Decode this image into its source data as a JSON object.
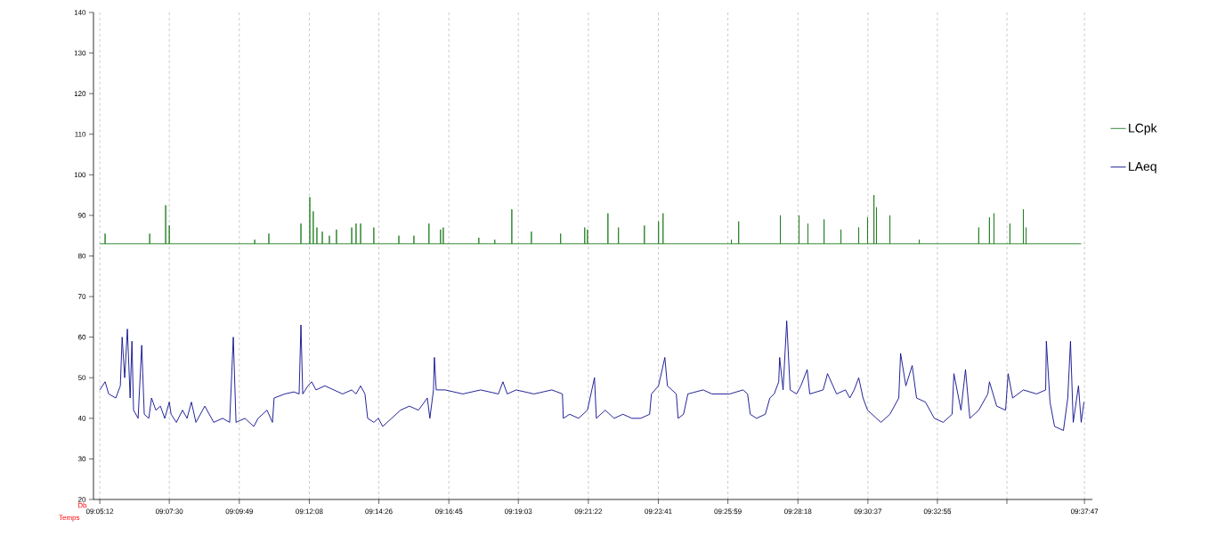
{
  "chart_data": {
    "type": "line",
    "xlabel": "Temps",
    "ylabel": "Db",
    "xlim": [
      9.0832,
      9.6341
    ],
    "ylim": [
      20,
      140
    ],
    "yticks": [
      20,
      30,
      40,
      50,
      60,
      70,
      80,
      90,
      100,
      110,
      120,
      130,
      140
    ],
    "xticks": [
      {
        "value": 9.08667,
        "label": "09:05:12"
      },
      {
        "value": 9.125,
        "label": "09:07:30"
      },
      {
        "value": 9.16361,
        "label": "09:09:49"
      },
      {
        "value": 9.20222,
        "label": "09:12:08"
      },
      {
        "value": 9.24056,
        "label": "09:14:26"
      },
      {
        "value": 9.27917,
        "label": "09:16:45"
      },
      {
        "value": 9.3175,
        "label": "09:19:03"
      },
      {
        "value": 9.35611,
        "label": "09:21:22"
      },
      {
        "value": 9.39472,
        "label": "09:23:41"
      },
      {
        "value": 9.43306,
        "label": "09:25:59"
      },
      {
        "value": 9.47167,
        "label": "09:28:18"
      },
      {
        "value": 9.51028,
        "label": "09:30:37"
      },
      {
        "value": 9.54861,
        "label": "09:32:55"
      },
      {
        "value": 9.58694,
        "label": null
      },
      {
        "value": 9.62972,
        "label": "09:37:47"
      }
    ],
    "grid": "x",
    "legend": "right",
    "marker": "none",
    "line_style": "solid",
    "series": [
      {
        "name": "LCpk",
        "color": "#1e7d1e",
        "x": [
          9.0867,
          9.0896,
          9.0896,
          9.0896,
          9.1142,
          9.1142,
          9.1142,
          9.123,
          9.123,
          9.123,
          9.125,
          9.125,
          9.125,
          9.1721,
          9.1721,
          9.1721,
          9.1799,
          9.1799,
          9.1799,
          9.1976,
          9.1976,
          9.1976,
          9.2025,
          9.2025,
          9.2025,
          9.2044,
          9.2044,
          9.2044,
          9.2064,
          9.2064,
          9.2064,
          9.2094,
          9.2094,
          9.2094,
          9.2133,
          9.2133,
          9.2133,
          9.2172,
          9.2172,
          9.2172,
          9.2256,
          9.2256,
          9.2256,
          9.228,
          9.228,
          9.228,
          9.2305,
          9.2305,
          9.2305,
          9.2378,
          9.2378,
          9.2378,
          9.2516,
          9.2516,
          9.2516,
          9.2599,
          9.2599,
          9.2599,
          9.2682,
          9.2682,
          9.2682,
          9.2746,
          9.2746,
          9.2746,
          9.2761,
          9.2761,
          9.2761,
          9.2957,
          9.2957,
          9.2957,
          9.3045,
          9.3045,
          9.3045,
          9.3139,
          9.3139,
          9.3139,
          9.3247,
          9.3247,
          9.3247,
          9.3408,
          9.3408,
          9.3408,
          9.3541,
          9.3541,
          9.3541,
          9.3556,
          9.3556,
          9.3556,
          9.3669,
          9.3669,
          9.3669,
          9.3727,
          9.3727,
          9.3727,
          9.387,
          9.387,
          9.387,
          9.3948,
          9.3948,
          9.3948,
          9.3973,
          9.3973,
          9.3973,
          9.435,
          9.435,
          9.435,
          9.439,
          9.439,
          9.439,
          9.462,
          9.462,
          9.462,
          9.4723,
          9.4723,
          9.4723,
          9.4772,
          9.4772,
          9.4772,
          9.4861,
          9.4861,
          9.4861,
          9.4954,
          9.4954,
          9.4954,
          9.5052,
          9.5052,
          9.5052,
          9.5101,
          9.5101,
          9.5101,
          9.5136,
          9.5136,
          9.5136,
          9.515,
          9.515,
          9.515,
          9.5224,
          9.5224,
          9.5224,
          9.5386,
          9.5386,
          9.5386,
          9.5714,
          9.5714,
          9.5714,
          9.5773,
          9.5773,
          9.5773,
          9.5798,
          9.5798,
          9.5798,
          9.5886,
          9.5886,
          9.5886,
          9.596,
          9.596,
          9.596,
          9.5975,
          9.5975,
          9.5975,
          9.6279
        ],
        "values": [
          83,
          83,
          85.5,
          83,
          83,
          85.5,
          83,
          83,
          92.5,
          83,
          83,
          87.5,
          83,
          83,
          84,
          83,
          83,
          85.5,
          83,
          83,
          88,
          83,
          83,
          94.5,
          83,
          83,
          91,
          83,
          83,
          87,
          83,
          83,
          86,
          83,
          83,
          85,
          83,
          83,
          86.5,
          83,
          83,
          87,
          83,
          83,
          88,
          83,
          83,
          88,
          83,
          83,
          87,
          83,
          83,
          85,
          83,
          83,
          85,
          83,
          83,
          88,
          83,
          83,
          86.5,
          83,
          83,
          87,
          83,
          83,
          84.5,
          83,
          83,
          84,
          83,
          83,
          91.5,
          83,
          83,
          86,
          83,
          83,
          85.5,
          83,
          83,
          87,
          83,
          83,
          86.5,
          83,
          83,
          90.5,
          83,
          83,
          87,
          83,
          83,
          87.5,
          83,
          83,
          88.5,
          83,
          83,
          90.5,
          83,
          83,
          84,
          83,
          83,
          88.5,
          83,
          83,
          90,
          83,
          83,
          90,
          83,
          83,
          88,
          83,
          83,
          89,
          83,
          83,
          86.5,
          83,
          83,
          87,
          83,
          83,
          89.5,
          83,
          83,
          95,
          83,
          83,
          92,
          83,
          83,
          90,
          83,
          83,
          84,
          83,
          83,
          87,
          83,
          83,
          89.5,
          83,
          83,
          90.5,
          83,
          83,
          88,
          83,
          83,
          91.5,
          83,
          83,
          87,
          83,
          83
        ]
      },
      {
        "name": "LAeq",
        "color": "#0a0a8c",
        "x": [
          9.0867,
          9.0896,
          9.0916,
          9.0955,
          9.098,
          9.099,
          9.1004,
          9.1019,
          9.1034,
          9.1044,
          9.1053,
          9.1078,
          9.1098,
          9.1112,
          9.1137,
          9.1152,
          9.1176,
          9.1201,
          9.1225,
          9.125,
          9.126,
          9.1289,
          9.1323,
          9.1348,
          9.1372,
          9.1397,
          9.1446,
          9.1495,
          9.1544,
          9.1583,
          9.1603,
          9.1618,
          9.1667,
          9.1716,
          9.174,
          9.1789,
          9.1819,
          9.1828,
          9.1887,
          9.1937,
          9.1966,
          9.1976,
          9.1986,
          9.2015,
          9.2035,
          9.2059,
          9.2108,
          9.2157,
          9.2206,
          9.2256,
          9.228,
          9.2305,
          9.2329,
          9.2344,
          9.2378,
          9.2403,
          9.2427,
          9.2476,
          9.2525,
          9.2574,
          9.2624,
          9.2673,
          9.2687,
          9.2707,
          9.2712,
          9.2722,
          9.2771,
          9.2869,
          9.2967,
          9.3065,
          9.309,
          9.3114,
          9.3163,
          9.3261,
          9.336,
          9.3418,
          9.3423,
          9.3458,
          9.3507,
          9.3556,
          9.3595,
          9.3605,
          9.3654,
          9.3703,
          9.3752,
          9.3801,
          9.385,
          9.3899,
          9.3909,
          9.3948,
          9.3983,
          9.3997,
          9.4046,
          9.4056,
          9.4086,
          9.411,
          9.4194,
          9.4243,
          9.4341,
          9.4414,
          9.4439,
          9.4454,
          9.4488,
          9.4537,
          9.4562,
          9.4586,
          9.4611,
          9.4616,
          9.4635,
          9.4655,
          9.4674,
          9.4709,
          9.4733,
          9.4768,
          9.4782,
          9.4856,
          9.488,
          9.493,
          9.4979,
          9.5003,
          9.5027,
          9.5052,
          9.5076,
          9.5101,
          9.515,
          9.5175,
          9.5224,
          9.5273,
          9.5283,
          9.5312,
          9.5347,
          9.5371,
          9.542,
          9.5469,
          9.5518,
          9.5567,
          9.5577,
          9.5616,
          9.5641,
          9.5665,
          9.5714,
          9.5764,
          9.5773,
          9.5813,
          9.5862,
          9.5876,
          9.5901,
          9.596,
          9.6033,
          9.6083,
          9.6087,
          9.6107,
          9.6132,
          9.6181,
          9.6205,
          9.622,
          9.6235,
          9.6264,
          9.6279,
          9.6294
        ],
        "values": [
          47,
          49,
          46,
          45,
          48,
          60,
          50,
          62,
          45,
          59,
          42,
          40,
          58,
          41,
          40,
          45,
          42,
          43,
          40,
          44,
          41,
          39,
          42,
          40,
          44,
          39,
          43,
          39,
          40,
          39,
          60,
          39,
          40,
          38,
          40,
          42,
          39,
          45,
          46,
          46.5,
          46,
          63,
          46,
          48,
          49,
          47,
          48,
          47,
          46,
          47,
          46,
          48,
          46,
          40,
          39,
          40,
          38,
          40,
          42,
          43,
          42,
          45,
          40,
          47,
          55,
          47,
          47,
          46,
          47,
          46,
          49,
          46,
          47,
          46,
          47,
          46,
          40,
          41,
          40,
          42,
          50,
          40,
          42,
          40,
          41,
          40,
          40,
          41,
          46,
          48,
          55,
          48,
          46,
          40,
          41,
          46,
          47,
          46,
          46,
          47,
          46,
          41,
          40,
          41,
          45,
          46,
          49,
          55,
          47,
          64,
          47,
          46,
          48,
          52,
          46,
          47,
          51,
          46,
          47,
          45,
          47,
          50,
          45,
          42,
          40,
          39,
          41,
          45,
          56,
          48,
          53,
          45,
          44,
          40,
          39,
          41,
          51,
          42,
          52,
          40,
          42,
          46,
          49,
          43,
          42,
          51,
          45,
          47,
          46,
          47,
          59,
          44,
          38,
          37,
          45,
          59,
          39,
          48,
          39,
          44
        ]
      }
    ]
  }
}
